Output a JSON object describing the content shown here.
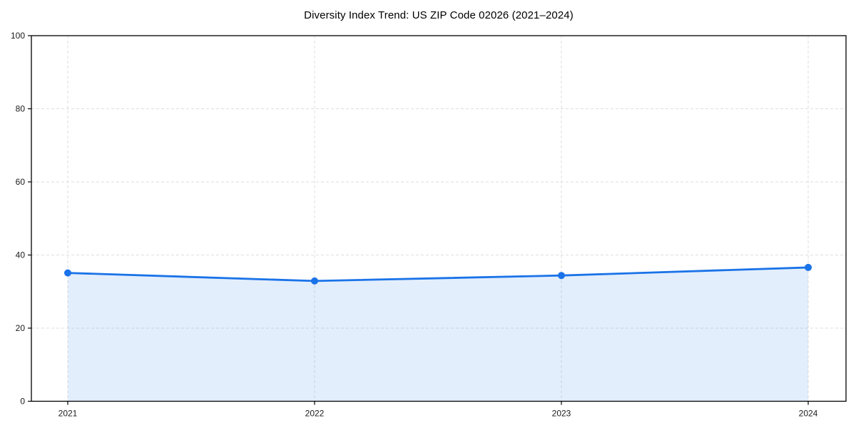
{
  "page": {
    "title": "Diversity Index Trend: US ZIP Code 02026 (2021–2024)"
  },
  "chart_data": {
    "type": "area",
    "title": "Diversity Index Trend: US ZIP Code 02026 (2021–2024)",
    "categories": [
      "2021",
      "2022",
      "2023",
      "2024"
    ],
    "series": [
      {
        "name": "Diversity Index",
        "values": [
          35.1,
          32.9,
          34.4,
          36.6
        ]
      }
    ],
    "xlabel": "",
    "ylabel": "",
    "ylim": [
      0,
      100
    ],
    "yticks": [
      0,
      20,
      40,
      60,
      80,
      100
    ],
    "grid": true,
    "grid_style": "dashed",
    "legend": "none",
    "colors": {
      "line": "#1a73e8",
      "marker": "#1a73e8",
      "fill": "#1a73e8",
      "fill_opacity": 0.12,
      "grid": "#dedede",
      "axis": "#000000",
      "text": "#1a1a1a"
    }
  }
}
